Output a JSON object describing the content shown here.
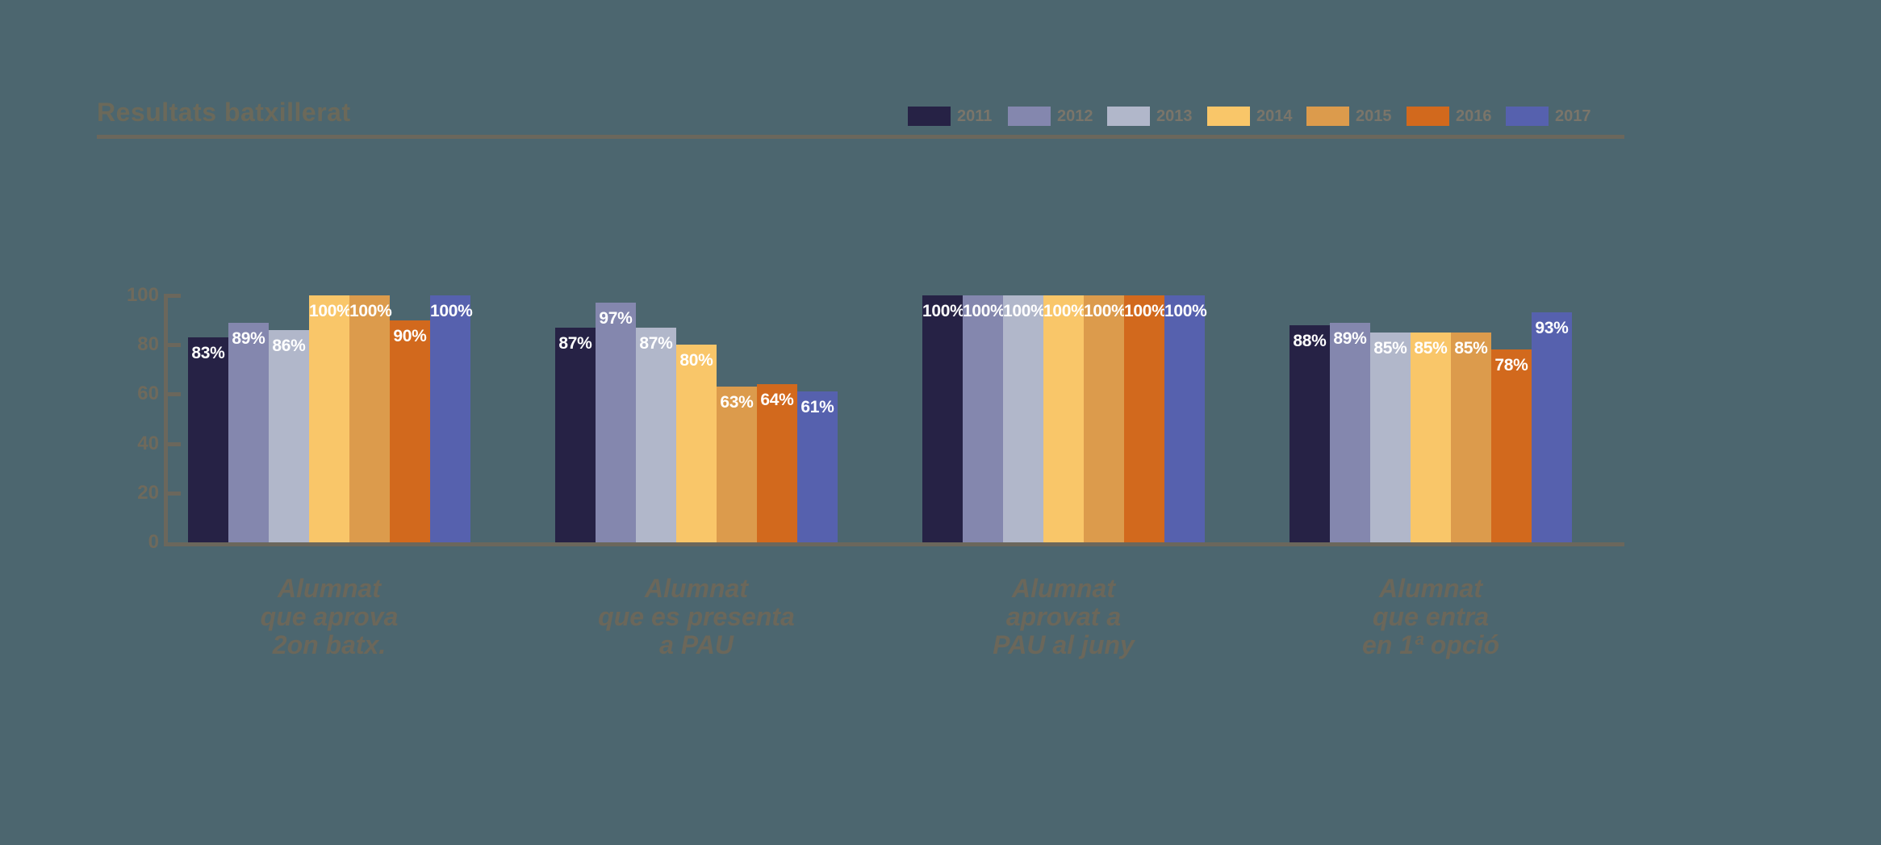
{
  "title": "Resultats batxillerat",
  "colors": {
    "background": "#4c666f",
    "title_text": "#6b695a",
    "rule_line": "#6b675c",
    "axis_line": "#6b675c",
    "tick_text": "#6f6a5c",
    "category_text": "#6b675a",
    "legend_text": "#7a756a",
    "bar_value_text": "#ffffff"
  },
  "chart_data": {
    "type": "bar",
    "title": "Resultats batxillerat",
    "categories": [
      [
        "Alumnat",
        "que aprova",
        "2on batx."
      ],
      [
        "Alumnat",
        "que es presenta",
        "a PAU"
      ],
      [
        "Alumnat",
        "aprovat a",
        "PAU al juny"
      ],
      [
        "Alumnat",
        "que entra",
        "en 1ª opció"
      ]
    ],
    "series": [
      {
        "name": "2011",
        "color": "#262245",
        "values": [
          83,
          87,
          100,
          88
        ]
      },
      {
        "name": "2012",
        "color": "#8487ae",
        "values": [
          89,
          97,
          100,
          89
        ]
      },
      {
        "name": "2013",
        "color": "#b1b7ca",
        "values": [
          86,
          87,
          100,
          85
        ]
      },
      {
        "name": "2014",
        "color": "#f9c669",
        "values": [
          100,
          80,
          100,
          85
        ]
      },
      {
        "name": "2015",
        "color": "#dc9b4c",
        "values": [
          100,
          63,
          100,
          85
        ]
      },
      {
        "name": "2016",
        "color": "#d2691d",
        "values": [
          90,
          64,
          100,
          78
        ]
      },
      {
        "name": "2017",
        "color": "#5661ae",
        "values": [
          100,
          61,
          100,
          93
        ]
      }
    ],
    "value_suffix": "%",
    "xlabel": "",
    "ylabel": "",
    "ylim": [
      0,
      100
    ],
    "yticks": [
      0,
      20,
      40,
      60,
      80,
      100
    ],
    "grid": false,
    "legend_position": "top-right",
    "bar_value_labels": "inside-top"
  }
}
